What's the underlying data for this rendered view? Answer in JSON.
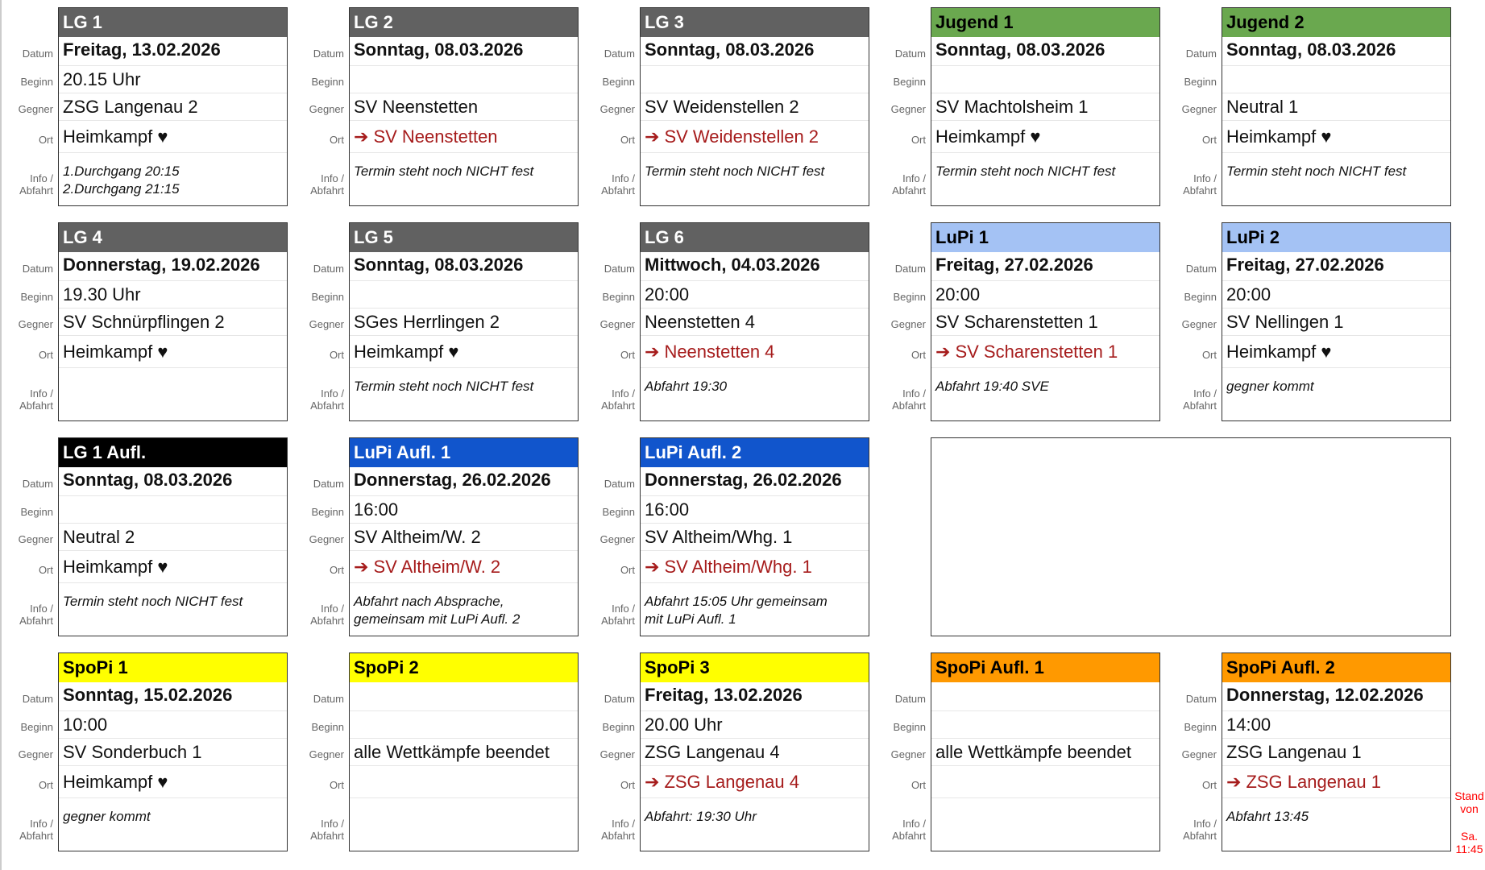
{
  "labels": {
    "datum": "Datum",
    "beginn": "Beginn",
    "gegner": "Gegner",
    "ort": "Ort",
    "info1": "Info /",
    "info2": "Abfahrt"
  },
  "colors": {
    "away_text": "#a61c1c",
    "stand_text": "#ff0000"
  },
  "cards": [
    {
      "title": "LG 1",
      "bg": "#616161",
      "fg": "#ffffff",
      "datum": "Freitag, 13.02.2026",
      "beginn": "20.15 Uhr",
      "gegner": "ZSG Langenau 2",
      "ort": "Heimkampf ♥",
      "away": false,
      "info": "1.Durchgang 20:15\n2.Durchgang 21:15"
    },
    {
      "title": "LG 2",
      "bg": "#616161",
      "fg": "#ffffff",
      "datum": "Sonntag, 08.03.2026",
      "beginn": "",
      "gegner": "SV Neenstetten",
      "ort": "SV Neenstetten",
      "away": true,
      "info": "Termin steht noch NICHT fest"
    },
    {
      "title": "LG 3",
      "bg": "#616161",
      "fg": "#ffffff",
      "datum": "Sonntag, 08.03.2026",
      "beginn": "",
      "gegner": "SV Weidenstellen 2",
      "ort": "SV Weidenstellen 2",
      "away": true,
      "info": "Termin steht noch NICHT fest"
    },
    {
      "title": "Jugend 1",
      "bg": "#6aa84f",
      "fg": "#000000",
      "datum": "Sonntag, 08.03.2026",
      "beginn": "",
      "gegner": "SV Machtolsheim 1",
      "ort": "Heimkampf ♥",
      "away": false,
      "info": "Termin steht noch NICHT fest"
    },
    {
      "title": "Jugend 2",
      "bg": "#6aa84f",
      "fg": "#000000",
      "datum": "Sonntag, 08.03.2026",
      "beginn": "",
      "gegner": "Neutral 1",
      "ort": "Heimkampf ♥",
      "away": false,
      "info": "Termin steht noch NICHT fest"
    },
    {
      "title": "LG 4",
      "bg": "#616161",
      "fg": "#ffffff",
      "datum": "Donnerstag, 19.02.2026",
      "beginn": "19.30 Uhr",
      "gegner": "SV Schnürpflingen 2",
      "ort": "Heimkampf ♥",
      "away": false,
      "info": ""
    },
    {
      "title": "LG 5",
      "bg": "#616161",
      "fg": "#ffffff",
      "datum": "Sonntag, 08.03.2026",
      "beginn": "",
      "gegner": "SGes Herrlingen 2",
      "ort": "Heimkampf ♥",
      "away": false,
      "info": "Termin steht noch NICHT fest"
    },
    {
      "title": "LG 6",
      "bg": "#616161",
      "fg": "#ffffff",
      "datum": "Mittwoch, 04.03.2026",
      "beginn": "20:00",
      "gegner": "Neenstetten 4",
      "ort": "Neenstetten 4",
      "away": true,
      "info": "Abfahrt 19:30"
    },
    {
      "title": "LuPi 1",
      "bg": "#a4c2f4",
      "fg": "#000000",
      "datum": "Freitag, 27.02.2026",
      "beginn": "20:00",
      "gegner": "SV Scharenstetten 1",
      "ort": "SV Scharenstetten 1",
      "away": true,
      "info": "Abfahrt 19:40 SVE"
    },
    {
      "title": "LuPi 2",
      "bg": "#a4c2f4",
      "fg": "#000000",
      "datum": "Freitag, 27.02.2026",
      "beginn": "20:00",
      "gegner": "SV Nellingen 1",
      "ort": "Heimkampf ♥",
      "away": false,
      "info": "gegner kommt"
    },
    {
      "title": "LG 1 Aufl.",
      "bg": "#000000",
      "fg": "#ffffff",
      "datum": "Sonntag, 08.03.2026",
      "beginn": "",
      "gegner": "Neutral 2",
      "ort": "Heimkampf ♥",
      "away": false,
      "info": "Termin steht noch NICHT fest"
    },
    {
      "title": "LuPi Aufl. 1",
      "bg": "#1155cc",
      "fg": "#ffffff",
      "datum": "Donnerstag, 26.02.2026",
      "beginn": "16:00",
      "gegner": "SV Altheim/W. 2",
      "ort": "SV Altheim/W. 2",
      "away": true,
      "info": "Abfahrt nach Absprache,\ngemeinsam mit LuPi Aufl. 2"
    },
    {
      "title": "LuPi Aufl. 2",
      "bg": "#1155cc",
      "fg": "#ffffff",
      "datum": "Donnerstag, 26.02.2026",
      "beginn": "16:00",
      "gegner": "SV Altheim/Whg. 1",
      "ort": "SV Altheim/Whg. 1",
      "away": true,
      "info": "Abfahrt 15:05 Uhr gemeinsam\nmit LuPi Aufl. 1"
    },
    null,
    null,
    {
      "title": "SpoPi 1",
      "bg": "#ffff00",
      "fg": "#000000",
      "datum": "Sonntag, 15.02.2026",
      "beginn": "10:00",
      "gegner": "SV Sonderbuch 1",
      "ort": "Heimkampf ♥",
      "away": false,
      "info": "gegner kommt"
    },
    {
      "title": "SpoPi 2",
      "bg": "#ffff00",
      "fg": "#000000",
      "datum": "",
      "beginn": "",
      "gegner": "alle Wettkämpfe beendet",
      "ort": "",
      "away": false,
      "info": ""
    },
    {
      "title": "SpoPi 3",
      "bg": "#ffff00",
      "fg": "#000000",
      "datum": "Freitag, 13.02.2026",
      "beginn": "20.00 Uhr",
      "gegner": "ZSG Langenau 4",
      "ort": "ZSG Langenau 4",
      "away": true,
      "info": "Abfahrt: 19:30 Uhr"
    },
    {
      "title": "SpoPi Aufl. 1",
      "bg": "#ff9900",
      "fg": "#000000",
      "datum": "",
      "beginn": "",
      "gegner": "alle Wettkämpfe beendet",
      "ort": "",
      "away": false,
      "info": ""
    },
    {
      "title": "SpoPi Aufl. 2",
      "bg": "#ff9900",
      "fg": "#000000",
      "datum": "Donnerstag, 12.02.2026",
      "beginn": "14:00",
      "gegner": "ZSG Langenau 1",
      "ort": "ZSG Langenau 1",
      "away": true,
      "info": "Abfahrt 13:45"
    }
  ],
  "stand": {
    "line1": "Stand",
    "line2": "von",
    "line3": "Sa.",
    "line4": "11:45"
  }
}
